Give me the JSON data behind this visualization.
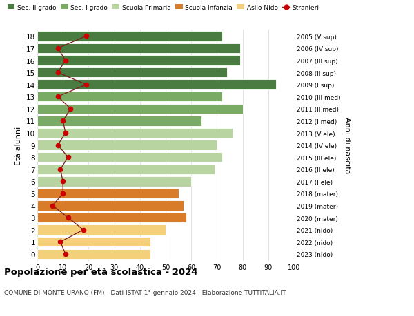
{
  "ages": [
    18,
    17,
    16,
    15,
    14,
    13,
    12,
    11,
    10,
    9,
    8,
    7,
    6,
    5,
    4,
    3,
    2,
    1,
    0
  ],
  "bar_values": [
    72,
    79,
    79,
    74,
    93,
    72,
    80,
    64,
    76,
    70,
    72,
    69,
    60,
    55,
    57,
    58,
    50,
    44,
    44
  ],
  "bar_colors": [
    "#4a7c41",
    "#4a7c41",
    "#4a7c41",
    "#4a7c41",
    "#4a7c41",
    "#7aab65",
    "#7aab65",
    "#7aab65",
    "#b8d4a0",
    "#b8d4a0",
    "#b8d4a0",
    "#b8d4a0",
    "#b8d4a0",
    "#d97c2a",
    "#d97c2a",
    "#d97c2a",
    "#f5d07a",
    "#f5d07a",
    "#f5d07a"
  ],
  "stranieri_values": [
    19,
    8,
    11,
    8,
    19,
    8,
    13,
    10,
    11,
    8,
    12,
    9,
    10,
    10,
    6,
    12,
    18,
    9,
    11
  ],
  "right_labels": [
    "2005 (V sup)",
    "2006 (IV sup)",
    "2007 (III sup)",
    "2008 (II sup)",
    "2009 (I sup)",
    "2010 (III med)",
    "2011 (II med)",
    "2012 (I med)",
    "2013 (V ele)",
    "2014 (IV ele)",
    "2015 (III ele)",
    "2016 (II ele)",
    "2017 (I ele)",
    "2018 (mater)",
    "2019 (mater)",
    "2020 (mater)",
    "2021 (nido)",
    "2022 (nido)",
    "2023 (nido)"
  ],
  "legend_labels": [
    "Sec. II grado",
    "Sec. I grado",
    "Scuola Primaria",
    "Scuola Infanzia",
    "Asilo Nido",
    "Stranieri"
  ],
  "legend_colors": [
    "#4a7c41",
    "#7aab65",
    "#b8d4a0",
    "#d97c2a",
    "#f5d07a",
    "#cc1111"
  ],
  "title_bold": "Popolazione per età scolastica - 2024",
  "subtitle": "COMUNE DI MONTE URANO (FM) - Dati ISTAT 1° gennaio 2024 - Elaborazione TUTTITALIA.IT",
  "ylabel_left": "Età alunni",
  "ylabel_right": "Anni di nascita",
  "xlim": [
    0,
    100
  ],
  "xticks": [
    0,
    10,
    20,
    30,
    40,
    50,
    60,
    70,
    80,
    90,
    100
  ],
  "background_color": "#ffffff",
  "grid_color": "#dddddd",
  "stranieri_line_color": "#7a1a1a",
  "stranieri_dot_color": "#cc0000"
}
